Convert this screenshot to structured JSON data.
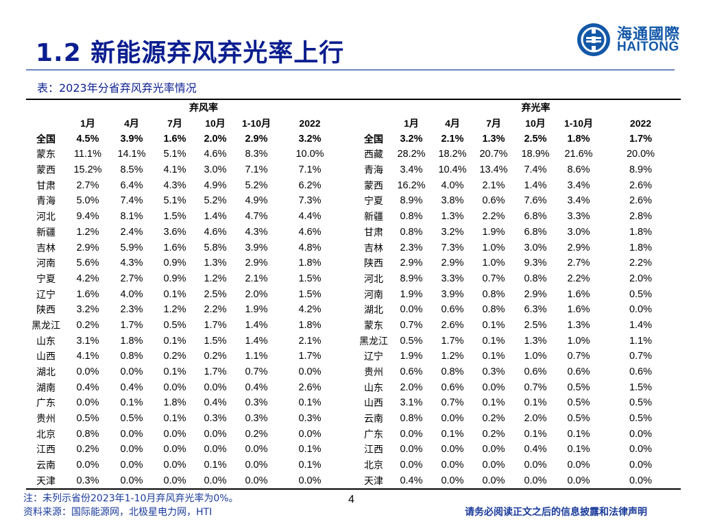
{
  "title": "1.2 新能源弃风弃光率上行",
  "logo": {
    "cn": "海通國際",
    "en": "HAITONG"
  },
  "caption": "表：2023年分省弃风弃光率情况",
  "wind": {
    "group": "弃风率",
    "headers": [
      "1月",
      "4月",
      "7月",
      "10月",
      "1-10月",
      "2022"
    ],
    "rows": [
      {
        "province": "全国",
        "values": [
          "4.5%",
          "3.9%",
          "1.6%",
          "2.0%",
          "2.9%",
          "3.2%"
        ]
      },
      {
        "province": "蒙东",
        "values": [
          "11.1%",
          "14.1%",
          "5.1%",
          "4.6%",
          "8.3%",
          "10.0%"
        ]
      },
      {
        "province": "蒙西",
        "values": [
          "15.2%",
          "8.5%",
          "4.1%",
          "3.0%",
          "7.1%",
          "7.1%"
        ]
      },
      {
        "province": "甘肃",
        "values": [
          "2.7%",
          "6.4%",
          "4.3%",
          "4.9%",
          "5.2%",
          "6.2%"
        ]
      },
      {
        "province": "青海",
        "values": [
          "5.0%",
          "7.4%",
          "5.1%",
          "5.2%",
          "4.9%",
          "7.3%"
        ]
      },
      {
        "province": "河北",
        "values": [
          "9.4%",
          "8.1%",
          "1.5%",
          "1.4%",
          "4.7%",
          "4.4%"
        ]
      },
      {
        "province": "新疆",
        "values": [
          "1.2%",
          "2.4%",
          "3.6%",
          "4.6%",
          "4.3%",
          "4.6%"
        ]
      },
      {
        "province": "吉林",
        "values": [
          "2.9%",
          "5.9%",
          "1.6%",
          "5.8%",
          "3.9%",
          "4.8%"
        ]
      },
      {
        "province": "河南",
        "values": [
          "5.6%",
          "4.3%",
          "0.9%",
          "1.3%",
          "2.9%",
          "1.8%"
        ]
      },
      {
        "province": "宁夏",
        "values": [
          "4.2%",
          "2.7%",
          "0.9%",
          "1.2%",
          "2.1%",
          "1.5%"
        ]
      },
      {
        "province": "辽宁",
        "values": [
          "1.6%",
          "4.0%",
          "0.1%",
          "2.5%",
          "2.0%",
          "1.5%"
        ]
      },
      {
        "province": "陕西",
        "values": [
          "3.2%",
          "2.3%",
          "1.2%",
          "2.2%",
          "1.9%",
          "4.2%"
        ]
      },
      {
        "province": "黑龙江",
        "values": [
          "0.2%",
          "1.7%",
          "0.5%",
          "1.7%",
          "1.4%",
          "1.8%"
        ]
      },
      {
        "province": "山东",
        "values": [
          "3.1%",
          "1.8%",
          "0.1%",
          "1.5%",
          "1.4%",
          "2.1%"
        ]
      },
      {
        "province": "山西",
        "values": [
          "4.1%",
          "0.8%",
          "0.2%",
          "0.2%",
          "1.1%",
          "1.7%"
        ]
      },
      {
        "province": "湖北",
        "values": [
          "0.0%",
          "0.0%",
          "0.1%",
          "1.7%",
          "0.7%",
          "0.0%"
        ]
      },
      {
        "province": "湖南",
        "values": [
          "0.4%",
          "0.4%",
          "0.0%",
          "0.0%",
          "0.4%",
          "2.6%"
        ]
      },
      {
        "province": "广东",
        "values": [
          "0.0%",
          "0.1%",
          "1.8%",
          "0.4%",
          "0.3%",
          "0.1%"
        ]
      },
      {
        "province": "贵州",
        "values": [
          "0.5%",
          "0.5%",
          "0.1%",
          "0.3%",
          "0.3%",
          "0.3%"
        ]
      },
      {
        "province": "北京",
        "values": [
          "0.8%",
          "0.0%",
          "0.0%",
          "0.0%",
          "0.2%",
          "0.0%"
        ]
      },
      {
        "province": "江西",
        "values": [
          "0.2%",
          "0.0%",
          "0.0%",
          "0.0%",
          "0.0%",
          "0.1%"
        ]
      },
      {
        "province": "云南",
        "values": [
          "0.0%",
          "0.0%",
          "0.0%",
          "0.1%",
          "0.0%",
          "0.1%"
        ]
      },
      {
        "province": "天津",
        "values": [
          "0.3%",
          "0.0%",
          "0.0%",
          "0.0%",
          "0.0%",
          "0.0%"
        ]
      }
    ]
  },
  "solar": {
    "group": "弃光率",
    "headers": [
      "1月",
      "4月",
      "7月",
      "10月",
      "1-10月",
      "2022"
    ],
    "rows": [
      {
        "province": "全国",
        "values": [
          "3.2%",
          "2.1%",
          "1.3%",
          "2.5%",
          "1.8%",
          "1.7%"
        ]
      },
      {
        "province": "西藏",
        "values": [
          "28.2%",
          "18.2%",
          "20.7%",
          "18.9%",
          "21.6%",
          "20.0%"
        ]
      },
      {
        "province": "青海",
        "values": [
          "3.4%",
          "10.4%",
          "13.4%",
          "7.4%",
          "8.6%",
          "8.9%"
        ]
      },
      {
        "province": "蒙西",
        "values": [
          "16.2%",
          "4.0%",
          "2.1%",
          "1.4%",
          "3.4%",
          "2.6%"
        ]
      },
      {
        "province": "宁夏",
        "values": [
          "8.9%",
          "3.8%",
          "0.6%",
          "7.6%",
          "3.4%",
          "2.6%"
        ]
      },
      {
        "province": "新疆",
        "values": [
          "0.8%",
          "1.3%",
          "2.2%",
          "6.8%",
          "3.3%",
          "2.8%"
        ]
      },
      {
        "province": "甘肃",
        "values": [
          "0.8%",
          "3.2%",
          "1.9%",
          "6.8%",
          "3.0%",
          "1.8%"
        ]
      },
      {
        "province": "吉林",
        "values": [
          "2.3%",
          "7.3%",
          "1.0%",
          "3.0%",
          "2.9%",
          "1.8%"
        ]
      },
      {
        "province": "陕西",
        "values": [
          "2.9%",
          "2.9%",
          "1.0%",
          "9.3%",
          "2.7%",
          "2.2%"
        ]
      },
      {
        "province": "河北",
        "values": [
          "8.9%",
          "3.3%",
          "0.7%",
          "0.8%",
          "2.2%",
          "2.0%"
        ]
      },
      {
        "province": "河南",
        "values": [
          "1.9%",
          "3.9%",
          "0.8%",
          "2.9%",
          "1.6%",
          "0.5%"
        ]
      },
      {
        "province": "湖北",
        "values": [
          "0.0%",
          "0.6%",
          "0.8%",
          "6.3%",
          "1.6%",
          "0.0%"
        ]
      },
      {
        "province": "蒙东",
        "values": [
          "0.7%",
          "2.6%",
          "0.1%",
          "2.5%",
          "1.3%",
          "1.4%"
        ]
      },
      {
        "province": "黑龙江",
        "values": [
          "0.5%",
          "1.7%",
          "0.1%",
          "1.3%",
          "1.0%",
          "1.1%"
        ]
      },
      {
        "province": "辽宁",
        "values": [
          "1.9%",
          "1.2%",
          "0.1%",
          "1.0%",
          "0.7%",
          "0.7%"
        ]
      },
      {
        "province": "贵州",
        "values": [
          "0.6%",
          "0.8%",
          "0.3%",
          "0.6%",
          "0.6%",
          "0.6%"
        ]
      },
      {
        "province": "山东",
        "values": [
          "2.0%",
          "0.6%",
          "0.0%",
          "0.7%",
          "0.5%",
          "1.5%"
        ]
      },
      {
        "province": "山西",
        "values": [
          "3.1%",
          "0.7%",
          "0.1%",
          "0.1%",
          "0.5%",
          "0.5%"
        ]
      },
      {
        "province": "云南",
        "values": [
          "0.8%",
          "0.0%",
          "0.2%",
          "2.0%",
          "0.5%",
          "0.5%"
        ]
      },
      {
        "province": "广东",
        "values": [
          "0.0%",
          "0.1%",
          "0.2%",
          "0.1%",
          "0.1%",
          "0.0%"
        ]
      },
      {
        "province": "江西",
        "values": [
          "0.0%",
          "0.0%",
          "0.0%",
          "0.4%",
          "0.1%",
          "0.0%"
        ]
      },
      {
        "province": "北京",
        "values": [
          "0.0%",
          "0.0%",
          "0.0%",
          "0.0%",
          "0.0%",
          "0.0%"
        ]
      },
      {
        "province": "天津",
        "values": [
          "0.4%",
          "0.0%",
          "0.0%",
          "0.0%",
          "0.0%",
          "0.0%"
        ]
      }
    ]
  },
  "footer": {
    "note": "注：未列示省份2023年1-10月弃风弃光率为0%。",
    "source": "资料来源：国际能源网，北极星电力网，HTI",
    "page": "4",
    "disclaimer": "请务必阅读正文之后的信息披露和法律声明"
  },
  "colors": {
    "title": "#0b1e8f",
    "logo": "#1358a8",
    "note": "#1a3a9a"
  }
}
